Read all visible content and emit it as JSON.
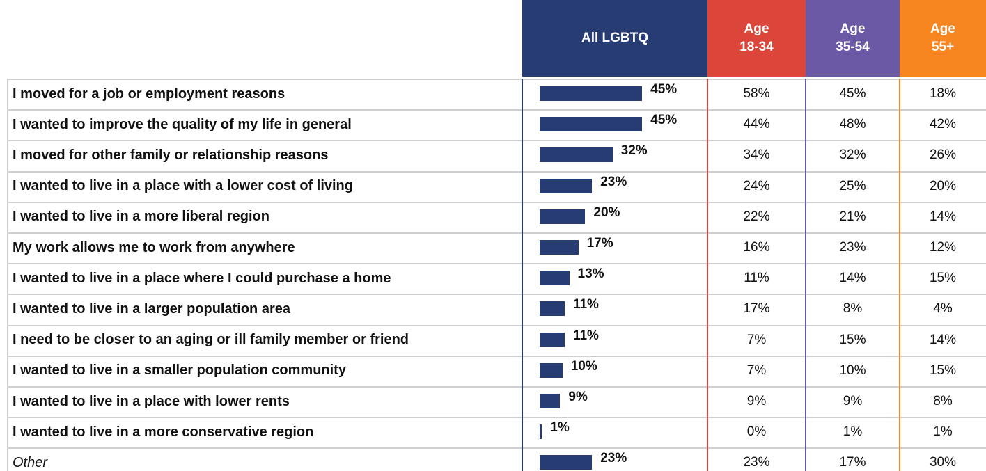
{
  "chart_data": {
    "type": "bar",
    "categories": [
      "I moved for a job or employment reasons",
      "I wanted to improve the quality of my life in general",
      "I moved for other family or relationship reasons",
      "I wanted to live in a place with a lower cost of living",
      "I wanted to live in a more liberal region",
      "My work allows me to work from anywhere",
      "I wanted to live in a place where I could purchase a home",
      "I wanted to live in a larger population area",
      "I need to be closer to an aging or ill family member or friend",
      "I wanted to live in a smaller population community",
      "I wanted to live in a place with lower rents",
      "I wanted to live in a more conservative region",
      "Other"
    ],
    "xlim": [
      0,
      100
    ],
    "series": [
      {
        "name": "All LGBTQ",
        "color": "#283c74",
        "values": [
          45,
          45,
          32,
          23,
          20,
          17,
          13,
          11,
          11,
          10,
          9,
          1,
          23
        ],
        "value_labels": [
          "45%",
          "45%",
          "32%",
          "23%",
          "20%",
          "17%",
          "13%",
          "11%",
          "11%",
          "10%",
          "9%",
          "1%",
          "23%"
        ]
      },
      {
        "name": "Age 18-34",
        "color": "#dc4539",
        "values": [
          58,
          44,
          34,
          24,
          22,
          16,
          11,
          17,
          7,
          7,
          9,
          0,
          23
        ],
        "value_labels": [
          "58%",
          "44%",
          "34%",
          "24%",
          "22%",
          "16%",
          "11%",
          "17%",
          "7%",
          "7%",
          "9%",
          "0%",
          "23%"
        ]
      },
      {
        "name": "Age 35-54",
        "color": "#6c59a5",
        "values": [
          45,
          48,
          32,
          25,
          21,
          23,
          14,
          8,
          15,
          10,
          9,
          1,
          17
        ],
        "value_labels": [
          "45%",
          "48%",
          "32%",
          "25%",
          "21%",
          "23%",
          "14%",
          "8%",
          "15%",
          "10%",
          "9%",
          "1%",
          "17%"
        ]
      },
      {
        "name": "Age 55+",
        "color": "#f78520",
        "values": [
          18,
          42,
          26,
          20,
          14,
          12,
          15,
          4,
          14,
          15,
          8,
          1,
          30
        ],
        "value_labels": [
          "18%",
          "42%",
          "26%",
          "20%",
          "14%",
          "12%",
          "15%",
          "4%",
          "14%",
          "15%",
          "8%",
          "1%",
          "30%"
        ]
      }
    ]
  }
}
